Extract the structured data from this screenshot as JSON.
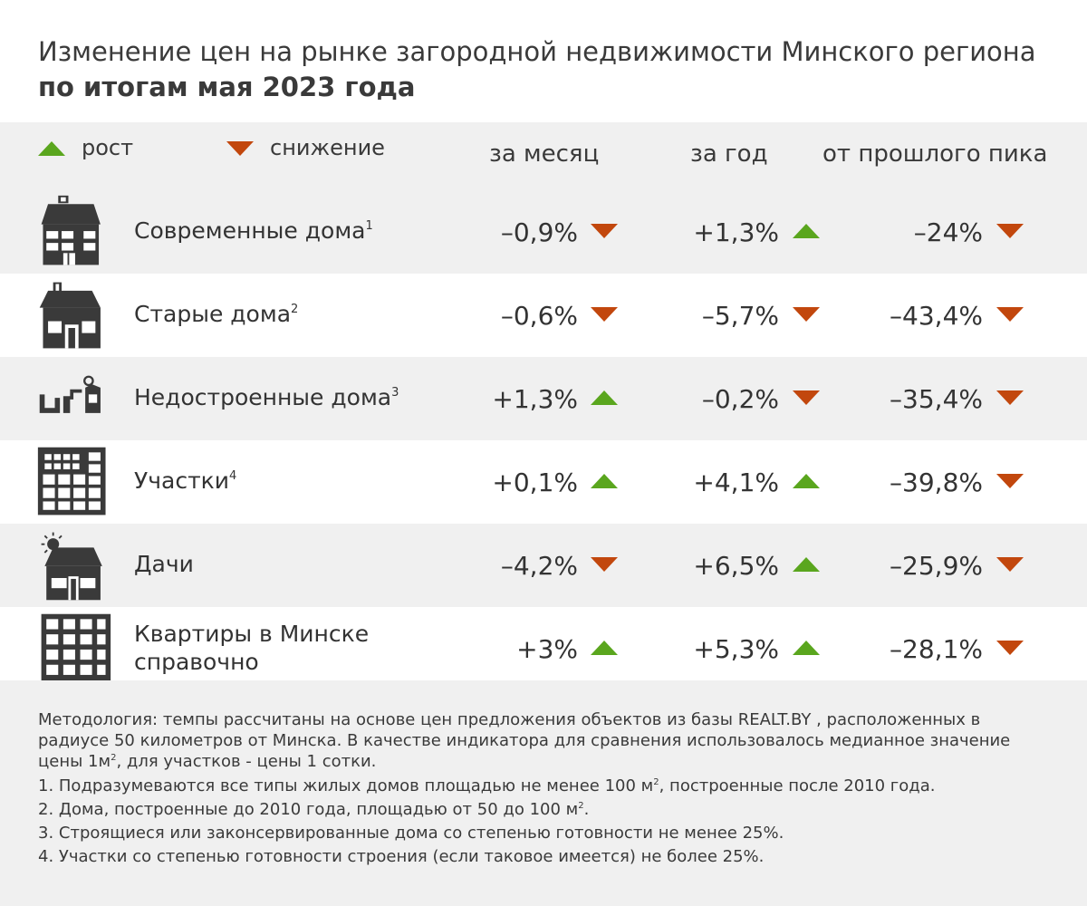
{
  "title": {
    "line1": "Изменение цен на рынке загородной недвижимости Минского региона",
    "line2": "по итогам мая 2023 года"
  },
  "legend": {
    "up_label": "рост",
    "down_label": "снижение"
  },
  "columns": [
    "за месяц",
    "за год",
    "от прошлого пика"
  ],
  "colors": {
    "up": "#5aa61e",
    "down": "#c2470d",
    "icon": "#3a3a3a",
    "band": "#f0f0f0"
  },
  "chart_data": {
    "type": "table",
    "columns": [
      "за месяц",
      "за год",
      "от прошлого пика"
    ],
    "rows": [
      {
        "label": "Современные дома",
        "sup": "1",
        "icon": "modern-house-icon",
        "values": [
          "–0,9%",
          "+1,3%",
          "–24%"
        ],
        "directions": [
          "down",
          "up",
          "down"
        ]
      },
      {
        "label": "Старые дома",
        "sup": "2",
        "icon": "old-house-icon",
        "values": [
          "–0,6%",
          "–5,7%",
          "–43,4%"
        ],
        "directions": [
          "down",
          "down",
          "down"
        ]
      },
      {
        "label": "Недостроенные дома",
        "sup": "3",
        "icon": "unfinished-house-icon",
        "values": [
          "+1,3%",
          "–0,2%",
          "–35,4%"
        ],
        "directions": [
          "up",
          "down",
          "down"
        ]
      },
      {
        "label": "Участки",
        "sup": "4",
        "icon": "land-plot-icon",
        "values": [
          "+0,1%",
          "+4,1%",
          "–39,8%"
        ],
        "directions": [
          "up",
          "up",
          "down"
        ]
      },
      {
        "label": "Дачи",
        "sup": "",
        "icon": "dacha-icon",
        "values": [
          "–4,2%",
          "+6,5%",
          "–25,9%"
        ],
        "directions": [
          "down",
          "up",
          "down"
        ]
      },
      {
        "label": "Квартиры в Минске",
        "label2": "справочно",
        "sup": "",
        "icon": "apartment-building-icon",
        "values": [
          "+3%",
          "+5,3%",
          "–28,1%"
        ],
        "directions": [
          "up",
          "up",
          "down"
        ]
      }
    ]
  },
  "footer": {
    "methodology_a": "Методология: темпы рассчитаны на основе цен предложения объектов из базы REALT.BY , расположенных в радиусе 50 километров от Минска. В качестве индикатора для сравнения использовалось медианное значение цены 1м",
    "methodology_sup": "2",
    "methodology_b": ", для участков  - цены 1 сотки.",
    "note1_a": "1. Подразумеваются все типы жилых домов площадью не менее 100 м",
    "note1_sup": "2",
    "note1_b": ", построенные после 2010 года.",
    "note2_a": "2. Дома, построенные до 2010 года, площадью от 50 до 100 м",
    "note2_sup": "2",
    "note2_b": ".",
    "note3": "3. Строящиеся или законсервированные дома со степенью готовности не менее 25%.",
    "note4": "4. Участки со степенью готовности строения (если таковое имеется) не более 25%."
  }
}
